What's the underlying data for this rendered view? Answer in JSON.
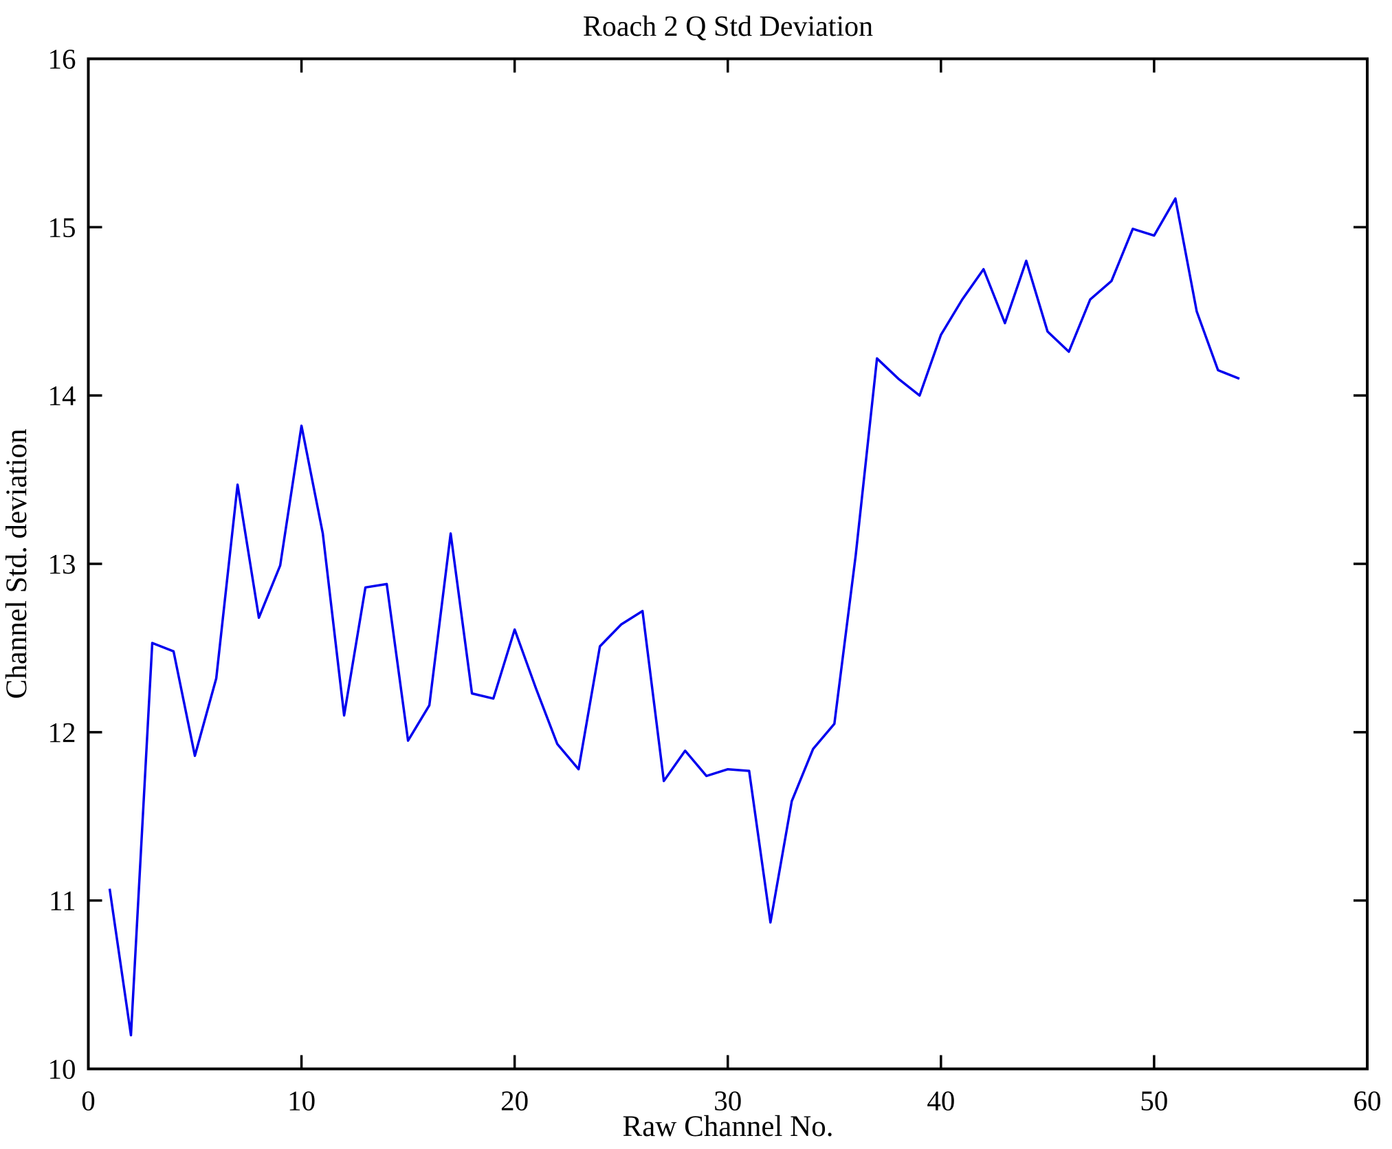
{
  "figure": {
    "background": "#ffffff",
    "frame_color": "#000000",
    "tick_color": "#000000"
  },
  "chart_data": {
    "type": "line",
    "title": "Roach 2 Q Std Deviation",
    "xlabel": "Raw Channel No.",
    "ylabel": "Channel Std. deviation",
    "xlim": [
      0,
      60
    ],
    "ylim": [
      10,
      16
    ],
    "xticks": [
      0,
      10,
      20,
      30,
      40,
      50,
      60
    ],
    "yticks": [
      10,
      11,
      12,
      13,
      14,
      15,
      16
    ],
    "grid": false,
    "legend": null,
    "series": [
      {
        "name": "channel-std-deviation",
        "color": "#0000ee",
        "x": [
          1,
          2,
          3,
          4,
          5,
          6,
          7,
          8,
          9,
          10,
          11,
          12,
          13,
          14,
          15,
          16,
          17,
          18,
          19,
          20,
          21,
          22,
          23,
          24,
          25,
          26,
          27,
          28,
          29,
          30,
          31,
          32,
          33,
          34,
          35,
          36,
          37,
          38,
          39,
          40,
          41,
          42,
          43,
          44,
          45,
          46,
          47,
          48,
          49,
          50,
          51,
          52,
          53,
          54
        ],
        "values": [
          11.07,
          10.2,
          12.53,
          12.48,
          11.86,
          12.32,
          13.47,
          12.68,
          12.99,
          13.82,
          13.18,
          12.1,
          12.86,
          12.88,
          11.95,
          12.16,
          13.18,
          12.23,
          12.2,
          12.61,
          12.26,
          11.93,
          11.78,
          12.51,
          12.64,
          12.72,
          11.71,
          11.89,
          11.74,
          11.78,
          11.77,
          10.87,
          11.59,
          11.9,
          12.05,
          13.05,
          14.22,
          14.1,
          14.0,
          14.36,
          14.57,
          14.75,
          14.43,
          14.8,
          14.38,
          14.26,
          14.57,
          14.68,
          14.99,
          14.95,
          15.17,
          14.5,
          14.15,
          14.1
        ]
      }
    ]
  }
}
